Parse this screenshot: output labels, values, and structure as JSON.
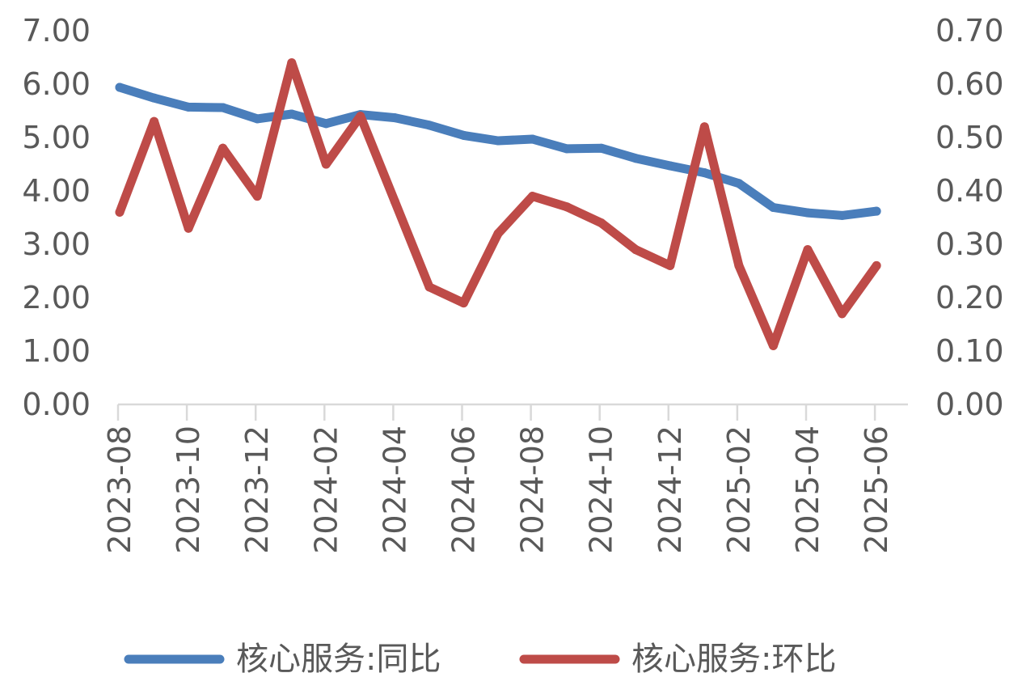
{
  "chart_data": {
    "type": "line",
    "x": [
      "2023-08",
      "2023-09",
      "2023-10",
      "2023-11",
      "2023-12",
      "2024-01",
      "2024-02",
      "2024-03",
      "2024-04",
      "2024-05",
      "2024-06",
      "2024-07",
      "2024-08",
      "2024-09",
      "2024-10",
      "2024-11",
      "2024-12",
      "2025-01",
      "2025-02",
      "2025-03",
      "2025-04",
      "2025-05",
      "2025-06"
    ],
    "x_tick_labels": [
      "2023-08",
      "2023-10",
      "2023-12",
      "2024-02",
      "2024-04",
      "2024-06",
      "2024-08",
      "2024-10",
      "2024-12",
      "2025-02",
      "2025-04",
      "2025-06"
    ],
    "y_left_ticks": [
      "0.00",
      "1.00",
      "2.00",
      "3.00",
      "4.00",
      "5.00",
      "6.00",
      "7.00"
    ],
    "y_right_ticks": [
      "0.00",
      "0.10",
      "0.20",
      "0.30",
      "0.40",
      "0.50",
      "0.60",
      "0.70"
    ],
    "ylim_left": [
      0,
      7
    ],
    "ylim_right": [
      0,
      0.7
    ],
    "grid": false,
    "legend_position": "bottom",
    "series": [
      {
        "name": "核心服务:同比",
        "axis": "left",
        "color": "#4a7ebb",
        "values": [
          5.94,
          5.74,
          5.57,
          5.56,
          5.35,
          5.44,
          5.26,
          5.43,
          5.37,
          5.23,
          5.04,
          4.94,
          4.97,
          4.79,
          4.8,
          4.61,
          4.47,
          4.34,
          4.14,
          3.69,
          3.59,
          3.54,
          3.62
        ]
      },
      {
        "name": "核心服务:环比",
        "axis": "right",
        "color": "#be4b48",
        "values": [
          0.36,
          0.53,
          0.33,
          0.48,
          0.39,
          0.64,
          0.45,
          0.54,
          0.38,
          0.22,
          0.19,
          0.32,
          0.39,
          0.37,
          0.34,
          0.29,
          0.26,
          0.52,
          0.26,
          0.11,
          0.29,
          0.17,
          0.26
        ]
      }
    ]
  }
}
